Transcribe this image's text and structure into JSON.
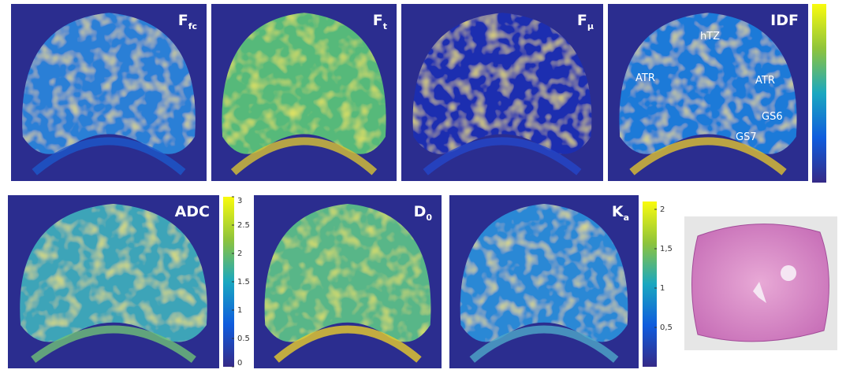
{
  "panels": [
    {
      "label": {
        "main": "F",
        "sub": "fc"
      }
    },
    {
      "label": {
        "main": "F",
        "sub": "t"
      }
    },
    {
      "label": {
        "main": "F",
        "sub": "μ"
      }
    },
    {
      "label": {
        "main": "IDF"
      },
      "annotations": [
        "hTZ",
        "ATR",
        "ATR",
        "GS6",
        "GS7"
      ]
    },
    {
      "label": {
        "main": "ADC"
      }
    },
    {
      "label": {
        "main": "D",
        "sub": "0"
      }
    },
    {
      "label": {
        "main": "K",
        "sub": "a"
      }
    }
  ],
  "colorbars": [
    {
      "lim": [
        0,
        3
      ],
      "ticks": [
        0,
        0.5,
        1,
        1.5,
        2,
        2.5,
        3
      ]
    },
    {
      "lim": [
        0,
        2.1
      ],
      "ticks": [
        {
          "value": 0.5,
          "label": "0,5"
        },
        1,
        {
          "value": 1.5,
          "label": "1,5"
        },
        2
      ]
    }
  ]
}
